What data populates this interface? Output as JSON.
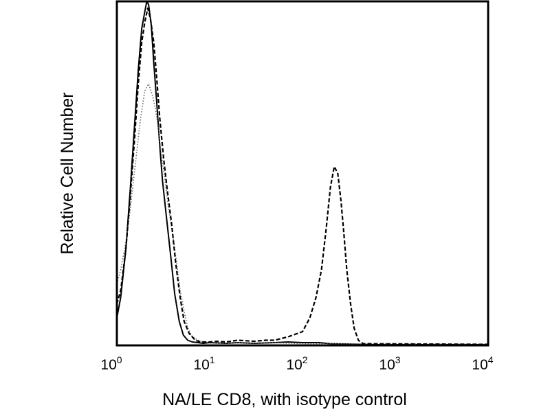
{
  "chart_data": {
    "type": "line",
    "title": "",
    "xlabel": "NA/LE CD8, with isotype control",
    "ylabel": "Relative Cell Number",
    "xscale": "log",
    "xlim": [
      1,
      10000
    ],
    "ylim": [
      0,
      100
    ],
    "grid": false,
    "x_ticks": [
      {
        "base": "10",
        "exp": "0"
      },
      {
        "base": "10",
        "exp": "1"
      },
      {
        "base": "10",
        "exp": "2"
      },
      {
        "base": "10",
        "exp": "3"
      },
      {
        "base": "10",
        "exp": "4"
      }
    ],
    "series": [
      {
        "style": "solid",
        "color": "#000000",
        "x": [
          1.0,
          1.1,
          1.25,
          1.4,
          1.55,
          1.7,
          1.85,
          2.0,
          2.1,
          2.2,
          2.35,
          2.5,
          2.7,
          2.9,
          3.1,
          3.4,
          3.8,
          4.2,
          4.7,
          5.2,
          5.8,
          6.5,
          7.5,
          8.5,
          10,
          15,
          20,
          30,
          50,
          70,
          100,
          150,
          200,
          300,
          400,
          500,
          1000,
          10000
        ],
        "y": [
          8,
          14,
          28,
          46,
          64,
          80,
          92,
          97,
          100,
          99,
          93,
          82,
          70,
          58,
          48,
          38,
          26,
          15,
          7,
          3,
          1.5,
          1,
          0.8,
          0.6,
          0.8,
          0.6,
          0.8,
          0.6,
          0.8,
          1,
          0.8,
          0.8,
          0.5,
          0.4,
          0.3,
          0.2,
          0.2,
          0.2
        ]
      },
      {
        "style": "dotted",
        "color": "#666666",
        "x": [
          1.0,
          1.1,
          1.25,
          1.4,
          1.6,
          1.8,
          2.0,
          2.2,
          2.4,
          2.6,
          2.8,
          3.0,
          3.3,
          3.6,
          4.0,
          4.4,
          4.8,
          5.3,
          5.8,
          6.5,
          7.5,
          8.5,
          10,
          15,
          20,
          30,
          50,
          70,
          100,
          10000
        ],
        "y": [
          18,
          22,
          30,
          40,
          54,
          66,
          74,
          76,
          73,
          69,
          63,
          56,
          48,
          40,
          32,
          24,
          16,
          10,
          5,
          2.5,
          1.5,
          1,
          0.8,
          0.6,
          0.8,
          0.6,
          0.8,
          0.6,
          0.5,
          0.3
        ]
      },
      {
        "style": "dashed",
        "color": "#000000",
        "x": [
          1.0,
          1.1,
          1.25,
          1.4,
          1.55,
          1.7,
          1.85,
          2.0,
          2.15,
          2.3,
          2.5,
          2.7,
          2.9,
          3.2,
          3.5,
          3.9,
          4.3,
          4.8,
          5.3,
          6.0,
          7.0,
          8.0,
          10,
          12,
          15,
          20,
          30,
          40,
          50,
          70,
          100,
          120,
          140,
          160,
          180,
          200,
          220,
          240,
          260,
          280,
          300,
          330,
          360,
          400,
          450,
          10000
        ],
        "y": [
          12,
          16,
          28,
          44,
          60,
          76,
          88,
          94,
          98,
          95,
          88,
          77,
          66,
          54,
          45,
          35,
          24,
          14,
          7,
          3.5,
          1.5,
          1,
          1,
          1.2,
          1,
          1.5,
          1.2,
          1.5,
          1.5,
          2.5,
          4,
          8,
          14,
          22,
          34,
          46,
          52,
          50,
          42,
          32,
          22,
          12,
          5,
          1.5,
          0.5,
          0.3
        ]
      }
    ]
  }
}
